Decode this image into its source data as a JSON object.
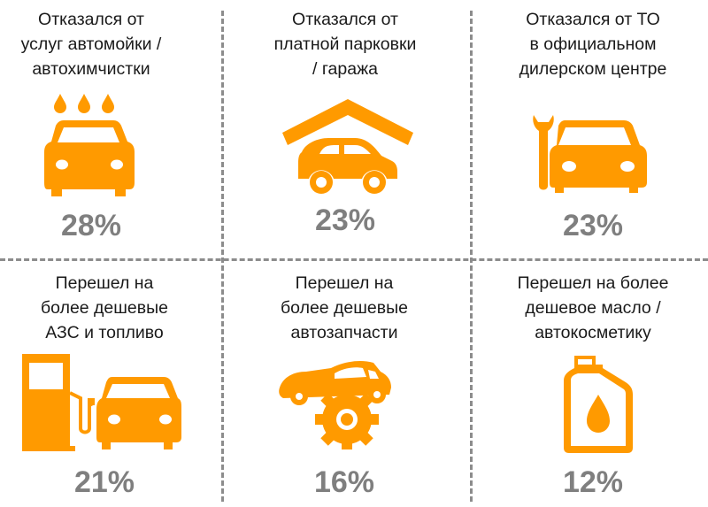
{
  "accent_color": "#FF9A00",
  "percent_color": "#7F7F7F",
  "items": [
    {
      "label": "Отказался от\nуслуг автомойки /\nавтохимчистки",
      "icon": "car-wash-icon",
      "percent": "28%"
    },
    {
      "label": "Отказался от\nплатной парковки\n/ гаража",
      "icon": "garage-parking-icon",
      "percent": "23%"
    },
    {
      "label": "Отказался от ТО\nв официальном\nдилерском центре",
      "icon": "car-service-wrench-icon",
      "percent": "23%"
    },
    {
      "label": "Перешел на\nболее дешевые\nАЗС и топливо",
      "icon": "gas-station-car-icon",
      "percent": "21%"
    },
    {
      "label": "Перешел на\nболее дешевые\nавтозапчасти",
      "icon": "car-gear-parts-icon",
      "percent": "16%"
    },
    {
      "label": "Перешел на более\nдешевое масло /\nавтокосметику",
      "icon": "oil-canister-icon",
      "percent": "12%"
    }
  ]
}
